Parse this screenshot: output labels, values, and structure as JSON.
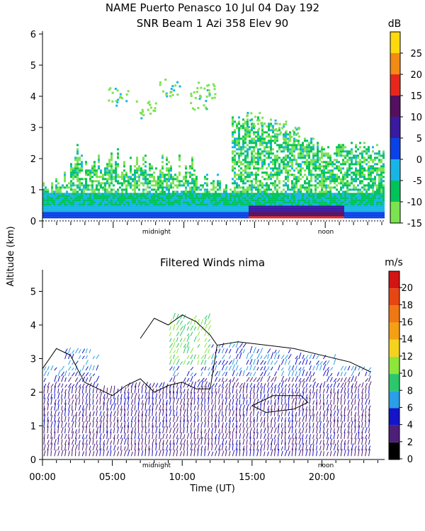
{
  "figure": {
    "title_line1": "NAME Puerto Penasco  10 Jul 04 Day 192",
    "title_line2": "SNR Beam 1 Azi 358 Elev 90",
    "shared_ylabel": "Altitude (km)"
  },
  "chart_data": [
    {
      "type": "heatmap",
      "title": "SNR Beam 1 Azi 358 Elev 90",
      "ylim": [
        0,
        6
      ],
      "y_ticks": [
        "0",
        "1",
        "2",
        "3",
        "4",
        "5",
        "6"
      ],
      "x_annotations": [
        "midnight",
        "noon"
      ],
      "colorbar": {
        "unit": "dB",
        "tick_labels": [
          "25",
          "20",
          "15",
          "10",
          "5",
          "0",
          "-5",
          "-10",
          "-15"
        ],
        "bands": [
          {
            "label": "-15",
            "color": "#7be34f"
          },
          {
            "label": "-10",
            "color": "#00c35a"
          },
          {
            "label": "-5",
            "color": "#19b4e6"
          },
          {
            "label": "0",
            "color": "#0a42e8"
          },
          {
            "label": "5",
            "color": "#3a1aa0"
          },
          {
            "label": "10",
            "color": "#550f60"
          },
          {
            "label": "15",
            "color": "#e8271c"
          },
          {
            "label": "20",
            "color": "#f38a14"
          },
          {
            "label": "25",
            "color": "#fdd90e"
          }
        ]
      }
    },
    {
      "type": "heatmap",
      "title": "Filtered Winds nima",
      "xlabel": "Time (UT)",
      "ylim": [
        0,
        5.6
      ],
      "xlim": [
        0,
        24
      ],
      "y_ticks": [
        "0",
        "1",
        "2",
        "3",
        "4",
        "5"
      ],
      "x_ticks": [
        "00:00",
        "05:00",
        "10:00",
        "15:00",
        "20:00"
      ],
      "x_annotations": [
        "midnight",
        "noon"
      ],
      "colorbar": {
        "unit": "m/s",
        "tick_labels": [
          "0",
          "2",
          "4",
          "6",
          "8",
          "10",
          "12",
          "14",
          "16",
          "18",
          "20"
        ],
        "bands": [
          {
            "label": "0",
            "color": "#000000"
          },
          {
            "label": "2",
            "color": "#4e1e78"
          },
          {
            "label": "4",
            "color": "#1414c8"
          },
          {
            "label": "6",
            "color": "#2a9ee6"
          },
          {
            "label": "8",
            "color": "#2ac86a"
          },
          {
            "label": "10",
            "color": "#8ee63a"
          },
          {
            "label": "12",
            "color": "#f5d21e"
          },
          {
            "label": "14",
            "color": "#f5a014"
          },
          {
            "label": "16",
            "color": "#f07814"
          },
          {
            "label": "18",
            "color": "#e64614"
          },
          {
            "label": "20",
            "color": "#d21414"
          }
        ]
      }
    }
  ]
}
